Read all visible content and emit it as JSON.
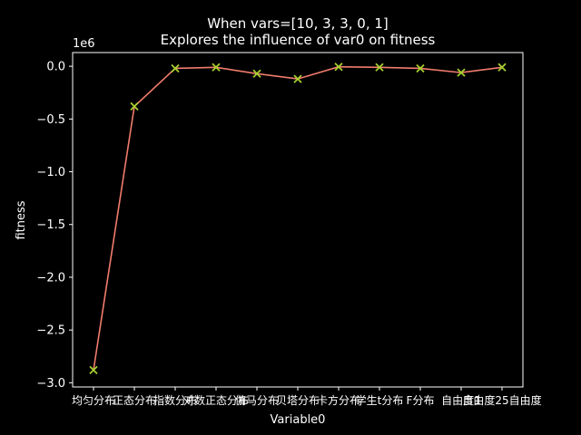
{
  "chart_data": {
    "type": "line",
    "title": "When vars=[10, 3, 3, 0, 1]",
    "subtitle": "Explores the influence of var0 on fitness",
    "xlabel": "Variable0",
    "ylabel": "fitness",
    "y_scale_label": "1e6",
    "y_multiplier": 1000000,
    "ylim": [
      -3.04,
      0.13
    ],
    "y_ticks": [
      0.0,
      -0.5,
      -1.0,
      -1.5,
      -2.0,
      -2.5,
      -3.0
    ],
    "y_tick_labels": [
      "0.0",
      "−0.5",
      "−1.0",
      "−1.5",
      "−2.0",
      "−2.5",
      "−3.0"
    ],
    "categories": [
      "均匀分布",
      "正态分布",
      "指数分布",
      "对数正态分布",
      "伽马分布",
      "贝塔分布",
      "卡方分布",
      "学生t分布",
      "F分布",
      "自由度1",
      "自由度25自由度"
    ],
    "values": [
      -2.88,
      -0.38,
      -0.02,
      -0.01,
      -0.07,
      -0.12,
      -0.005,
      -0.01,
      -0.02,
      -0.06,
      -0.01
    ],
    "line_color": "#f07c6c",
    "marker_color": "#a8d02e",
    "marker": "x",
    "grid": false
  }
}
